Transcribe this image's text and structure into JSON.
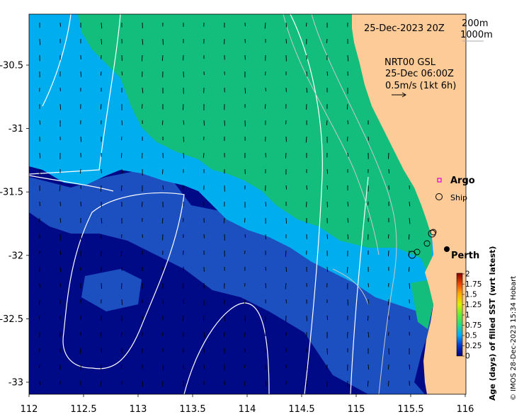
{
  "header": {
    "date_label": "25-Dec-2023 20Z",
    "contour_200": "200m",
    "contour_1000": "1000m"
  },
  "current_info": {
    "line1": "NRT00 GSL",
    "line2": "25-Dec 06:00Z",
    "line3": "0.5m/s (1kt 6h)"
  },
  "legend": {
    "argo_label": "Argo",
    "ship_label": "Ship",
    "city_label": "Perth"
  },
  "colorbar": {
    "ticks": [
      "2",
      "1.75",
      "1.5",
      "1.25",
      "1",
      "0.75",
      "0.5",
      "0.25",
      "0"
    ],
    "title": "Age (days) of filled SST (wrt latest)"
  },
  "axes": {
    "x_ticks": [
      "112",
      "112.5",
      "113",
      "113.5",
      "114",
      "114.5",
      "115",
      "115.5",
      "116"
    ],
    "y_ticks": [
      "-30.5",
      "-31",
      "-31.5",
      "-32",
      "-32.5",
      "-33"
    ]
  },
  "credit": "© IMOS 28-Dec-2023 15:34 Hobart",
  "colors": {
    "deep_navy": "#000a87",
    "mid_blue": "#1c4fbf",
    "sky_blue": "#00aef0",
    "green": "#13be7c",
    "land": "#fccb97",
    "contour_white": "#ffffff",
    "contour_grey": "#c9c9c9"
  }
}
